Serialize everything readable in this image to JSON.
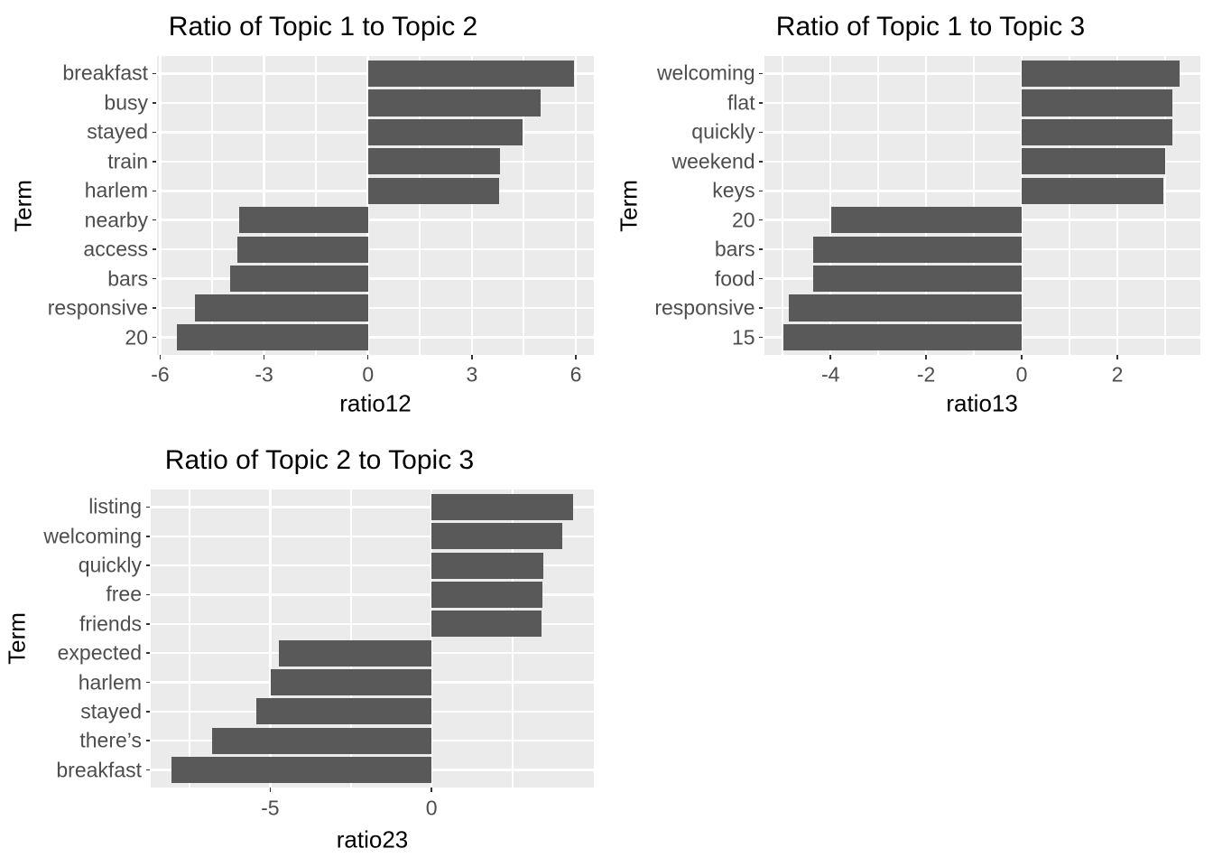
{
  "styles": {
    "background": "#FFFFFF",
    "bar_fill": "#595959",
    "panel_background": "#EBEBEB",
    "gridline_color": "#FFFFFF",
    "tick_label_color": "#4D4D4D",
    "axis_title_color": "#000000",
    "plot_title_color": "#000000",
    "tick_mark_color": "#333333"
  },
  "chart_data": [
    {
      "type": "bar",
      "orientation": "horizontal",
      "title": "Ratio of Topic 1 to Topic 2",
      "xlabel": "ratio12",
      "ylabel": "Term",
      "categories": [
        "breakfast",
        "busy",
        "stayed",
        "train",
        "harlem",
        "nearby",
        "access",
        "bars",
        "responsive",
        "20"
      ],
      "values": [
        5.94,
        4.98,
        4.45,
        3.81,
        3.78,
        -3.71,
        -3.78,
        -3.97,
        -4.99,
        -5.52
      ],
      "xlim": [
        -6.09,
        6.52
      ],
      "xticks": [
        -6,
        -3,
        0,
        3,
        6
      ],
      "xticks_minor": [
        -4.5,
        -1.5,
        1.5,
        4.5
      ],
      "grid": true,
      "legend": "none"
    },
    {
      "type": "bar",
      "orientation": "horizontal",
      "title": "Ratio of Topic 1 to Topic 3",
      "xlabel": "ratio13",
      "ylabel": "Term",
      "categories": [
        "welcoming",
        "flat",
        "quickly",
        "weekend",
        "keys",
        "20",
        "bars",
        "food",
        "responsive",
        "15"
      ],
      "values": [
        3.31,
        3.16,
        3.15,
        3.01,
        2.97,
        -3.98,
        -4.37,
        -4.37,
        -4.87,
        -4.98
      ],
      "xlim": [
        -5.39,
        3.73
      ],
      "xticks": [
        -4,
        -2,
        0,
        2
      ],
      "xticks_minor": [
        -5,
        -3,
        -1,
        1,
        3
      ],
      "grid": true,
      "legend": "none"
    },
    {
      "type": "bar",
      "orientation": "horizontal",
      "title": "Ratio of Topic 2 to Topic 3",
      "xlabel": "ratio23",
      "ylabel": "Term",
      "categories": [
        "listing",
        "welcoming",
        "quickly",
        "free",
        "friends",
        "expected",
        "harlem",
        "stayed",
        "there’s",
        "breakfast"
      ],
      "values": [
        4.4,
        4.06,
        3.46,
        3.44,
        3.42,
        -4.72,
        -4.97,
        -5.42,
        -6.8,
        -8.07
      ],
      "xlim": [
        -8.7,
        5.03
      ],
      "xticks": [
        -5,
        0
      ],
      "xticks_minor": [
        -7.5,
        -2.5,
        2.5
      ],
      "grid": true,
      "legend": "none"
    }
  ]
}
